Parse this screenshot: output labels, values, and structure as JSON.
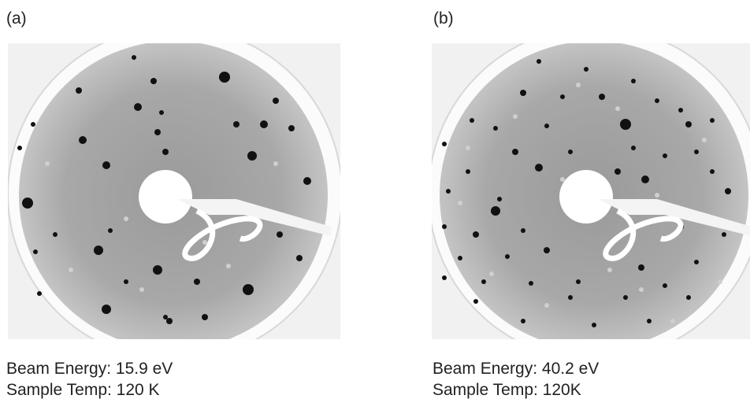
{
  "panels": [
    {
      "label": "(a)",
      "caption": [
        "Beam Energy: 15.9 eV",
        "Sample Temp: 120 K"
      ]
    },
    {
      "label": "(b)",
      "caption": [
        "Beam Energy: 40.2 eV",
        "Sample Temp: 120K"
      ]
    }
  ]
}
